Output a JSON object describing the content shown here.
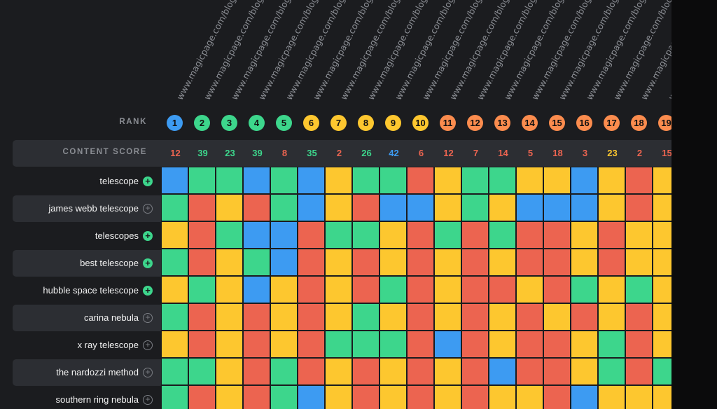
{
  "labels": {
    "rank": "RANK",
    "content_score": "CONTENT SCORE"
  },
  "url_text": "www.magicpage.com/blog",
  "colors": {
    "blue": "#3d9bf2",
    "green": "#3dd68c",
    "yellow": "#fdc72f",
    "red": "#ec6450",
    "orange": "#fb8c4e"
  },
  "ranks": [
    {
      "label": "1",
      "color": "blue"
    },
    {
      "label": "2",
      "color": "green"
    },
    {
      "label": "3",
      "color": "green"
    },
    {
      "label": "4",
      "color": "green"
    },
    {
      "label": "5",
      "color": "green"
    },
    {
      "label": "6",
      "color": "yellow"
    },
    {
      "label": "7",
      "color": "yellow"
    },
    {
      "label": "8",
      "color": "yellow"
    },
    {
      "label": "9",
      "color": "yellow"
    },
    {
      "label": "10",
      "color": "yellow"
    },
    {
      "label": "11",
      "color": "orange"
    },
    {
      "label": "12",
      "color": "orange"
    },
    {
      "label": "13",
      "color": "orange"
    },
    {
      "label": "14",
      "color": "orange"
    },
    {
      "label": "15",
      "color": "orange"
    },
    {
      "label": "16",
      "color": "orange"
    },
    {
      "label": "17",
      "color": "orange"
    },
    {
      "label": "18",
      "color": "orange"
    },
    {
      "label": "19",
      "color": "orange"
    }
  ],
  "scores": [
    {
      "value": "12",
      "color": "red"
    },
    {
      "value": "39",
      "color": "green"
    },
    {
      "value": "23",
      "color": "green"
    },
    {
      "value": "39",
      "color": "green"
    },
    {
      "value": "8",
      "color": "red"
    },
    {
      "value": "35",
      "color": "green"
    },
    {
      "value": "2",
      "color": "red"
    },
    {
      "value": "26",
      "color": "green"
    },
    {
      "value": "42",
      "color": "blue"
    },
    {
      "value": "6",
      "color": "red"
    },
    {
      "value": "12",
      "color": "red"
    },
    {
      "value": "7",
      "color": "red"
    },
    {
      "value": "14",
      "color": "red"
    },
    {
      "value": "5",
      "color": "red"
    },
    {
      "value": "18",
      "color": "red"
    },
    {
      "value": "3",
      "color": "red"
    },
    {
      "value": "23",
      "color": "yellow"
    },
    {
      "value": "2",
      "color": "red"
    },
    {
      "value": "15",
      "color": "red"
    }
  ],
  "keywords": [
    {
      "label": "telescope",
      "added": true
    },
    {
      "label": "james webb telescope",
      "added": false
    },
    {
      "label": "telescopes",
      "added": true
    },
    {
      "label": "best telescope",
      "added": true
    },
    {
      "label": "hubble space telescope",
      "added": true
    },
    {
      "label": "carina nebula",
      "added": false
    },
    {
      "label": "x ray telescope",
      "added": false
    },
    {
      "label": "the nardozzi method",
      "added": false
    },
    {
      "label": "southern ring nebula",
      "added": false
    }
  ],
  "grid": [
    "bggbgbyggryggyybyry",
    "gryrgbyrbbygybbbyry",
    "yrgbbrggyrgrgrryryy",
    "grygbryryryryrryryy",
    "ygybyryrgryrryrgygy",
    "gryryrygyryryryryry",
    "yryryrgggrbryrrygry",
    "ggyrgryryryrbrrygrg",
    "gryrgbyryryryyrbyyy"
  ]
}
